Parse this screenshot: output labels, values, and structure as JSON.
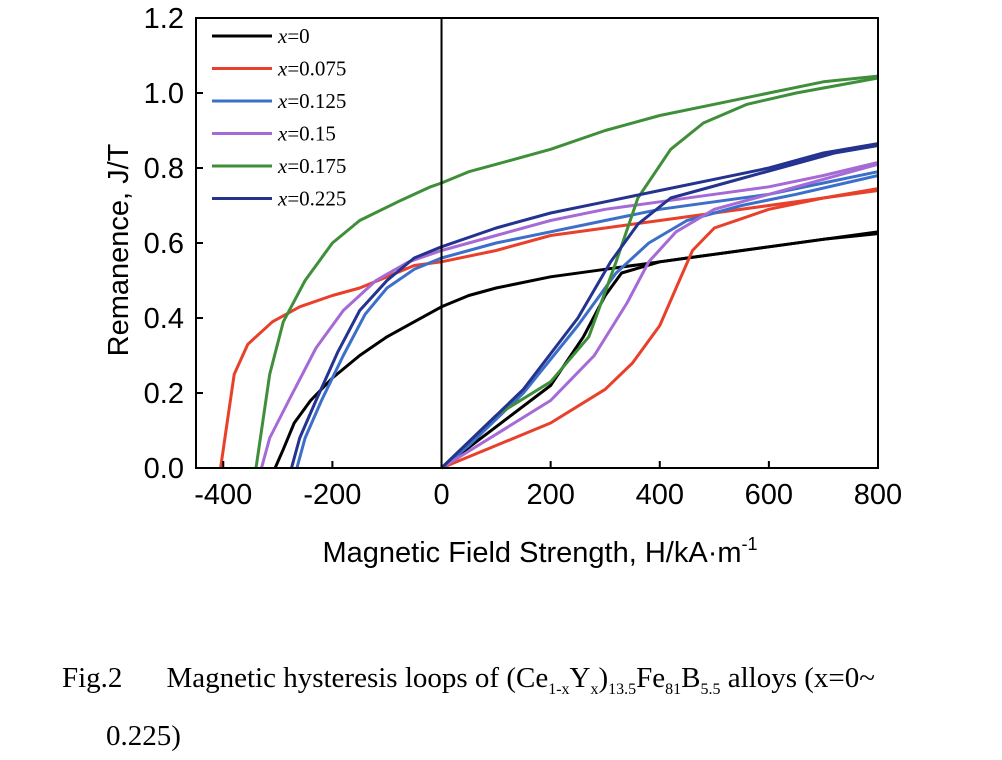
{
  "caption": {
    "label": "Fig.2",
    "text_before": "Magnetic hysteresis loops of (Ce",
    "sub1": "1-x",
    "y": "Y",
    "sub2": "x",
    "close": ")",
    "sub3": "13.5",
    "fe": "Fe",
    "sub4": "81",
    "b": "B",
    "sub5": "5.5",
    "text_after": " alloys (x=0~",
    "line2": "0.225)"
  },
  "chart_data": {
    "type": "line",
    "title": "",
    "xlabel": "Magnetic Field Strength, H/kA·m",
    "xlabel_sup": "-1",
    "ylabel": "Remanence, J/T",
    "xlim": [
      -450,
      800
    ],
    "ylim": [
      0.0,
      1.2
    ],
    "x_ticks": [
      -400,
      -200,
      0,
      200,
      400,
      600,
      800
    ],
    "x_tick_labels": [
      "-400",
      "-200",
      "0",
      "200",
      "400",
      "600",
      "800"
    ],
    "y_ticks": [
      0.0,
      0.2,
      0.4,
      0.6,
      0.8,
      1.0,
      1.2
    ],
    "y_tick_labels": [
      "0.0",
      "0.2",
      "0.4",
      "0.6",
      "0.8",
      "1.0",
      "1.2"
    ],
    "grid": false,
    "legend_position": "top-left",
    "series": [
      {
        "name": "x=0",
        "color": "#000000",
        "upper": [
          [
            -305,
            0.0
          ],
          [
            -290,
            0.05
          ],
          [
            -270,
            0.12
          ],
          [
            -240,
            0.18
          ],
          [
            -200,
            0.24
          ],
          [
            -150,
            0.3
          ],
          [
            -100,
            0.35
          ],
          [
            -50,
            0.39
          ],
          [
            0,
            0.43
          ],
          [
            50,
            0.46
          ],
          [
            100,
            0.48
          ],
          [
            200,
            0.51
          ],
          [
            300,
            0.53
          ],
          [
            400,
            0.55
          ],
          [
            500,
            0.57
          ],
          [
            600,
            0.59
          ],
          [
            700,
            0.61
          ],
          [
            800,
            0.63
          ]
        ],
        "lower": [
          [
            0,
            0.0
          ],
          [
            100,
            0.11
          ],
          [
            200,
            0.22
          ],
          [
            260,
            0.35
          ],
          [
            300,
            0.46
          ],
          [
            330,
            0.52
          ],
          [
            400,
            0.55
          ],
          [
            500,
            0.57
          ],
          [
            600,
            0.59
          ],
          [
            700,
            0.61
          ],
          [
            800,
            0.625
          ]
        ]
      },
      {
        "name": "x=0.075",
        "color": "#e8402a",
        "upper": [
          [
            -405,
            0.0
          ],
          [
            -395,
            0.1
          ],
          [
            -380,
            0.25
          ],
          [
            -355,
            0.33
          ],
          [
            -310,
            0.39
          ],
          [
            -260,
            0.43
          ],
          [
            -200,
            0.46
          ],
          [
            -150,
            0.48
          ],
          [
            -100,
            0.51
          ],
          [
            -50,
            0.54
          ],
          [
            0,
            0.55
          ],
          [
            100,
            0.58
          ],
          [
            200,
            0.62
          ],
          [
            300,
            0.64
          ],
          [
            400,
            0.66
          ],
          [
            500,
            0.68
          ],
          [
            600,
            0.7
          ],
          [
            700,
            0.72
          ],
          [
            800,
            0.74
          ]
        ],
        "lower": [
          [
            0,
            0.0
          ],
          [
            100,
            0.06
          ],
          [
            200,
            0.12
          ],
          [
            300,
            0.21
          ],
          [
            350,
            0.28
          ],
          [
            400,
            0.38
          ],
          [
            430,
            0.48
          ],
          [
            460,
            0.58
          ],
          [
            500,
            0.64
          ],
          [
            560,
            0.67
          ],
          [
            600,
            0.69
          ],
          [
            700,
            0.72
          ],
          [
            800,
            0.745
          ]
        ]
      },
      {
        "name": "x=0.125",
        "color": "#3b6fc9",
        "upper": [
          [
            -265,
            0.0
          ],
          [
            -250,
            0.08
          ],
          [
            -220,
            0.18
          ],
          [
            -180,
            0.3
          ],
          [
            -140,
            0.41
          ],
          [
            -100,
            0.48
          ],
          [
            -50,
            0.53
          ],
          [
            0,
            0.56
          ],
          [
            100,
            0.6
          ],
          [
            200,
            0.63
          ],
          [
            300,
            0.66
          ],
          [
            400,
            0.69
          ],
          [
            500,
            0.71
          ],
          [
            600,
            0.73
          ],
          [
            700,
            0.76
          ],
          [
            800,
            0.79
          ]
        ],
        "lower": [
          [
            0,
            0.0
          ],
          [
            50,
            0.06
          ],
          [
            150,
            0.2
          ],
          [
            250,
            0.38
          ],
          [
            320,
            0.52
          ],
          [
            380,
            0.6
          ],
          [
            450,
            0.66
          ],
          [
            550,
            0.7
          ],
          [
            650,
            0.73
          ],
          [
            800,
            0.78
          ]
        ]
      },
      {
        "name": "x=0.15",
        "color": "#a66ad6",
        "upper": [
          [
            -330,
            0.0
          ],
          [
            -315,
            0.08
          ],
          [
            -280,
            0.18
          ],
          [
            -230,
            0.32
          ],
          [
            -180,
            0.42
          ],
          [
            -120,
            0.5
          ],
          [
            -60,
            0.55
          ],
          [
            0,
            0.58
          ],
          [
            100,
            0.62
          ],
          [
            200,
            0.66
          ],
          [
            300,
            0.69
          ],
          [
            400,
            0.71
          ],
          [
            500,
            0.73
          ],
          [
            600,
            0.75
          ],
          [
            700,
            0.78
          ],
          [
            800,
            0.815
          ]
        ],
        "lower": [
          [
            0,
            0.0
          ],
          [
            100,
            0.09
          ],
          [
            200,
            0.18
          ],
          [
            280,
            0.3
          ],
          [
            340,
            0.44
          ],
          [
            380,
            0.55
          ],
          [
            430,
            0.63
          ],
          [
            500,
            0.69
          ],
          [
            600,
            0.73
          ],
          [
            700,
            0.77
          ],
          [
            800,
            0.81
          ]
        ]
      },
      {
        "name": "x=0.175",
        "color": "#3f8f3a",
        "upper": [
          [
            -340,
            0.0
          ],
          [
            -330,
            0.1
          ],
          [
            -315,
            0.25
          ],
          [
            -290,
            0.39
          ],
          [
            -250,
            0.5
          ],
          [
            -200,
            0.6
          ],
          [
            -150,
            0.66
          ],
          [
            -80,
            0.71
          ],
          [
            -20,
            0.75
          ],
          [
            0,
            0.76
          ],
          [
            50,
            0.79
          ],
          [
            100,
            0.81
          ],
          [
            200,
            0.85
          ],
          [
            300,
            0.9
          ],
          [
            400,
            0.94
          ],
          [
            500,
            0.97
          ],
          [
            600,
            1.0
          ],
          [
            700,
            1.03
          ],
          [
            800,
            1.045
          ]
        ],
        "lower": [
          [
            0,
            0.0
          ],
          [
            100,
            0.14
          ],
          [
            200,
            0.23
          ],
          [
            270,
            0.35
          ],
          [
            320,
            0.55
          ],
          [
            360,
            0.72
          ],
          [
            420,
            0.85
          ],
          [
            480,
            0.92
          ],
          [
            560,
            0.97
          ],
          [
            650,
            1.0
          ],
          [
            800,
            1.04
          ]
        ]
      },
      {
        "name": "x=0.225",
        "color": "#24338f",
        "upper": [
          [
            -275,
            0.0
          ],
          [
            -260,
            0.08
          ],
          [
            -230,
            0.18
          ],
          [
            -190,
            0.31
          ],
          [
            -150,
            0.42
          ],
          [
            -100,
            0.5
          ],
          [
            -50,
            0.56
          ],
          [
            0,
            0.59
          ],
          [
            100,
            0.64
          ],
          [
            200,
            0.68
          ],
          [
            300,
            0.71
          ],
          [
            400,
            0.74
          ],
          [
            500,
            0.77
          ],
          [
            600,
            0.8
          ],
          [
            700,
            0.84
          ],
          [
            800,
            0.865
          ]
        ],
        "lower": [
          [
            0,
            0.0
          ],
          [
            50,
            0.07
          ],
          [
            150,
            0.21
          ],
          [
            250,
            0.4
          ],
          [
            310,
            0.55
          ],
          [
            360,
            0.65
          ],
          [
            420,
            0.72
          ],
          [
            520,
            0.76
          ],
          [
            620,
            0.8
          ],
          [
            720,
            0.84
          ],
          [
            800,
            0.86
          ]
        ]
      }
    ]
  }
}
